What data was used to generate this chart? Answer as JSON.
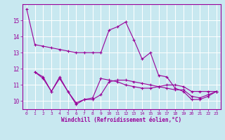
{
  "line1_x": [
    0,
    1,
    2,
    3,
    4,
    5,
    6,
    7,
    8,
    9,
    10,
    11,
    12,
    13,
    14,
    15,
    16,
    17,
    18,
    19,
    20,
    21,
    22,
    23
  ],
  "line1_y": [
    15.7,
    13.5,
    13.4,
    13.3,
    13.2,
    13.1,
    13.0,
    13.0,
    13.0,
    13.0,
    14.4,
    14.6,
    14.9,
    13.8,
    12.6,
    13.0,
    11.6,
    11.5,
    10.8,
    10.6,
    10.1,
    10.1,
    10.3,
    10.6
  ],
  "line2_x": [
    1,
    2,
    3,
    4,
    5,
    6,
    7,
    8,
    9,
    10,
    11,
    12,
    13,
    14,
    15,
    16,
    17,
    18,
    19,
    20,
    21,
    22,
    23
  ],
  "line2_y": [
    11.8,
    11.4,
    10.6,
    11.5,
    10.6,
    9.9,
    10.1,
    10.1,
    10.4,
    11.2,
    11.3,
    11.3,
    11.2,
    11.1,
    11.0,
    10.9,
    10.8,
    10.7,
    10.7,
    10.3,
    10.2,
    10.4,
    10.6
  ],
  "line3_x": [
    1,
    2,
    3,
    4,
    5,
    6,
    7,
    8,
    9,
    10,
    11,
    12,
    13,
    14,
    15,
    16,
    17,
    18,
    19,
    20,
    21,
    22,
    23
  ],
  "line3_y": [
    11.8,
    11.5,
    10.6,
    11.4,
    10.6,
    9.8,
    10.1,
    10.2,
    11.4,
    11.3,
    11.2,
    11.0,
    10.9,
    10.8,
    10.8,
    10.9,
    11.0,
    11.0,
    10.9,
    10.6,
    10.6,
    10.6,
    10.6
  ],
  "color": "#990099",
  "bg_color": "#c8e8f0",
  "grid_color": "#ffffff",
  "xlabel": "Windchill (Refroidissement éolien,°C)",
  "ylim": [
    9.5,
    16.0
  ],
  "xlim": [
    -0.5,
    23.5
  ],
  "yticks": [
    10,
    11,
    12,
    13,
    14,
    15
  ],
  "xticks": [
    0,
    1,
    2,
    3,
    4,
    5,
    6,
    7,
    8,
    9,
    10,
    11,
    12,
    13,
    14,
    15,
    16,
    17,
    18,
    19,
    20,
    21,
    22,
    23
  ]
}
